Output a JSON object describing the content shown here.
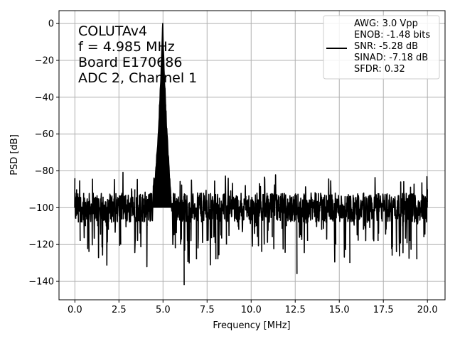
{
  "chart_data": {
    "type": "line",
    "xlabel": "Frequency [MHz]",
    "ylabel": "PSD [dB]",
    "xlim": [
      -0.9,
      21.0
    ],
    "ylim": [
      -150,
      7
    ],
    "x_ticks": [
      0.0,
      2.5,
      5.0,
      7.5,
      10.0,
      12.5,
      15.0,
      17.5,
      20.0
    ],
    "x_tick_labels": [
      "0.0",
      "2.5",
      "5.0",
      "7.5",
      "10.0",
      "12.5",
      "15.0",
      "17.5",
      "20.0"
    ],
    "y_ticks": [
      0,
      -20,
      -40,
      -60,
      -80,
      -100,
      -120,
      -140
    ],
    "y_tick_labels": [
      "0",
      "−20",
      "−40",
      "−60",
      "−80",
      "−100",
      "−120",
      "−140"
    ],
    "grid": true,
    "legend_position": "top-right",
    "annotation_lines": [
      "COLUTAv4",
      "f = 4.985 MHz",
      "Board E170686",
      "ADC 2, Channel 1"
    ],
    "legend_lines": [
      "AWG: 3.0 Vpp",
      "ENOB: -1.48 bits",
      "SNR: -5.28 dB",
      "SINAD: -7.18 dB",
      "SFDR: 0.32"
    ],
    "series": [
      {
        "color": "#000000",
        "noise_floor_db": -100,
        "peak": {
          "x": 4.985,
          "y": 0
        },
        "points": [
          [
            0.0,
            -84
          ],
          [
            0.05,
            -106
          ],
          [
            0.1,
            -90
          ],
          [
            0.2,
            -108
          ],
          [
            0.3,
            -118
          ],
          [
            0.5,
            -92
          ],
          [
            0.6,
            -110
          ],
          [
            0.8,
            -124
          ],
          [
            1.0,
            -98
          ],
          [
            1.3,
            -110
          ],
          [
            1.6,
            -94
          ],
          [
            1.9,
            -112
          ],
          [
            2.0,
            -96
          ],
          [
            2.3,
            -104
          ],
          [
            2.6,
            -120
          ],
          [
            2.8,
            -98
          ],
          [
            3.1,
            -108
          ],
          [
            3.4,
            -90
          ],
          [
            3.7,
            -114
          ],
          [
            3.9,
            -95
          ],
          [
            4.1,
            -110
          ],
          [
            4.3,
            -92
          ],
          [
            4.4,
            -100
          ],
          [
            4.45,
            -88
          ],
          [
            4.5,
            -84
          ],
          [
            4.55,
            -90
          ],
          [
            4.6,
            -78
          ],
          [
            4.65,
            -72
          ],
          [
            4.7,
            -66
          ],
          [
            4.75,
            -58
          ],
          [
            4.8,
            -46
          ],
          [
            4.85,
            -36
          ],
          [
            4.9,
            -24
          ],
          [
            4.95,
            -10
          ],
          [
            4.985,
            0
          ],
          [
            5.0,
            -8
          ],
          [
            5.05,
            -22
          ],
          [
            5.1,
            -34
          ],
          [
            5.15,
            -44
          ],
          [
            5.2,
            -56
          ],
          [
            5.25,
            -64
          ],
          [
            5.3,
            -72
          ],
          [
            5.35,
            -80
          ],
          [
            5.4,
            -88
          ],
          [
            5.45,
            -94
          ],
          [
            5.5,
            -102
          ],
          [
            5.6,
            -92
          ],
          [
            5.7,
            -122
          ],
          [
            5.8,
            -96
          ],
          [
            6.0,
            -120
          ],
          [
            6.2,
            -142
          ],
          [
            6.3,
            -100
          ],
          [
            6.5,
            -112
          ],
          [
            6.9,
            -128
          ],
          [
            7.1,
            -92
          ],
          [
            7.5,
            -118
          ],
          [
            7.7,
            -94
          ],
          [
            8.0,
            -128
          ],
          [
            8.3,
            -104
          ],
          [
            8.6,
            -120
          ],
          [
            9.0,
            -94
          ],
          [
            9.3,
            -112
          ],
          [
            9.8,
            -102
          ],
          [
            10.0,
            -96
          ],
          [
            10.3,
            -110
          ],
          [
            10.6,
            -124
          ],
          [
            10.9,
            -92
          ],
          [
            11.2,
            -116
          ],
          [
            11.6,
            -98
          ],
          [
            12.0,
            -110
          ],
          [
            12.3,
            -94
          ],
          [
            12.6,
            -136
          ],
          [
            12.9,
            -104
          ],
          [
            13.2,
            -118
          ],
          [
            13.6,
            -96
          ],
          [
            14.0,
            -112
          ],
          [
            14.4,
            -92
          ],
          [
            14.8,
            -120
          ],
          [
            15.2,
            -100
          ],
          [
            15.6,
            -130
          ],
          [
            16.0,
            -96
          ],
          [
            16.4,
            -110
          ],
          [
            16.8,
            -94
          ],
          [
            17.2,
            -118
          ],
          [
            17.6,
            -100
          ],
          [
            18.0,
            -126
          ],
          [
            18.3,
            -96
          ],
          [
            18.6,
            -110
          ],
          [
            18.8,
            -92
          ],
          [
            19.0,
            -118
          ],
          [
            19.2,
            -98
          ],
          [
            19.4,
            -128
          ],
          [
            19.6,
            -100
          ],
          [
            19.8,
            -116
          ],
          [
            19.95,
            -108
          ],
          [
            20.0,
            -90
          ]
        ]
      }
    ]
  }
}
